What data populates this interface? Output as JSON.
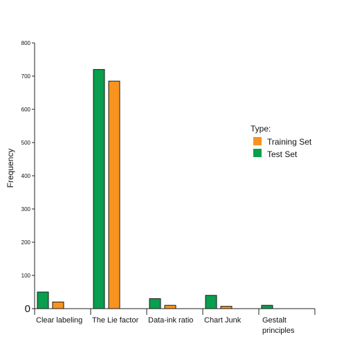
{
  "chart_data": {
    "type": "bar",
    "categories": [
      "Clear labeling",
      "The Lie factor",
      "Data-ink ratio",
      "Chart Junk",
      "Gestalt principles"
    ],
    "category_lines": [
      [
        "Clear labeling"
      ],
      [
        "The Lie factor"
      ],
      [
        "Data-ink ratio"
      ],
      [
        "Chart Junk"
      ],
      [
        "Gestalt",
        "principles"
      ]
    ],
    "series": [
      {
        "name": "Test Set",
        "color": "#0a9e4f",
        "values": [
          50,
          720,
          30,
          40,
          10
        ]
      },
      {
        "name": "Training Set",
        "color": "#f7931e",
        "values": [
          20,
          685,
          10,
          7,
          0
        ]
      }
    ],
    "ylabel": "Frequency",
    "ylim": [
      0,
      800
    ],
    "yticks": [
      0,
      100,
      200,
      300,
      400,
      500,
      600,
      700,
      800
    ],
    "legend": {
      "title": "Type:",
      "placement": "right",
      "entries": [
        {
          "label": "Training Set",
          "color": "#f7931e"
        },
        {
          "label": "Test Set",
          "color": "#0a9e4f"
        }
      ]
    },
    "grid": false
  }
}
